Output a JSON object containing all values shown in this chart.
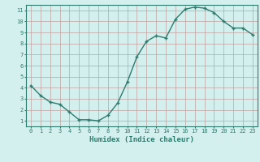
{
  "x": [
    0,
    1,
    2,
    3,
    4,
    5,
    6,
    7,
    8,
    9,
    10,
    11,
    12,
    13,
    14,
    15,
    16,
    17,
    18,
    19,
    20,
    21,
    22,
    23
  ],
  "y": [
    4.2,
    3.3,
    2.7,
    2.5,
    1.8,
    1.1,
    1.1,
    1.0,
    1.5,
    2.6,
    4.5,
    6.8,
    8.2,
    8.7,
    8.5,
    10.2,
    11.1,
    11.3,
    11.2,
    10.8,
    10.0,
    9.4,
    9.4,
    8.8
  ],
  "line_color": "#2e7b6e",
  "marker": "+",
  "bg_color": "#d4f0ee",
  "grid_color": "#c0a0a0",
  "xlabel": "Humidex (Indice chaleur)",
  "xlim": [
    -0.5,
    23.5
  ],
  "ylim": [
    0.5,
    11.5
  ],
  "xticks": [
    0,
    1,
    2,
    3,
    4,
    5,
    6,
    7,
    8,
    9,
    10,
    11,
    12,
    13,
    14,
    15,
    16,
    17,
    18,
    19,
    20,
    21,
    22,
    23
  ],
  "yticks": [
    1,
    2,
    3,
    4,
    5,
    6,
    7,
    8,
    9,
    10,
    11
  ],
  "tick_color": "#2e7b6e",
  "label_color": "#2e7b6e",
  "spine_color": "#2e7b6e",
  "tick_fontsize": 5,
  "xlabel_fontsize": 6.5,
  "marker_size": 3,
  "line_width": 1.0
}
